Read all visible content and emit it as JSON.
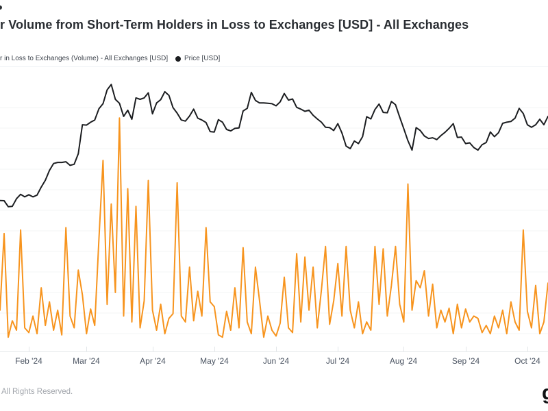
{
  "header": {
    "visible_title": "r Volume from Short-Term Holders in Loss to Exchanges [USD] - All Exchanges"
  },
  "legend": {
    "volume_label": "r in Loss to Exchanges (Volume) - All Exchanges [USD]",
    "price_label": "Price [USD]",
    "volume_color": "#f7941e",
    "price_color": "#1b1d20"
  },
  "footer": {
    "copyright": "All Rights Reserved.",
    "logo_partial_letter": "g"
  },
  "chart_data": {
    "type": "line",
    "title": "Transfer Volume from Short-Term Holders in Loss to Exchanges [USD] - All Exchanges",
    "grid": "horizontal-faint",
    "legend_position": "top-left",
    "x_dates": [
      "2024-01-19",
      "2024-01-21",
      "2024-01-23",
      "2024-01-25",
      "2024-01-27",
      "2024-01-29",
      "2024-01-31",
      "2024-02-02",
      "2024-02-04",
      "2024-02-06",
      "2024-02-08",
      "2024-02-10",
      "2024-02-12",
      "2024-02-14",
      "2024-02-16",
      "2024-02-18",
      "2024-02-20",
      "2024-02-22",
      "2024-02-24",
      "2024-02-26",
      "2024-02-28",
      "2024-03-01",
      "2024-03-03",
      "2024-03-05",
      "2024-03-07",
      "2024-03-09",
      "2024-03-11",
      "2024-03-13",
      "2024-03-15",
      "2024-03-17",
      "2024-03-19",
      "2024-03-21",
      "2024-03-23",
      "2024-03-25",
      "2024-03-27",
      "2024-03-29",
      "2024-03-31",
      "2024-04-02",
      "2024-04-04",
      "2024-04-06",
      "2024-04-08",
      "2024-04-10",
      "2024-04-12",
      "2024-04-14",
      "2024-04-16",
      "2024-04-18",
      "2024-04-20",
      "2024-04-22",
      "2024-04-24",
      "2024-04-26",
      "2024-04-28",
      "2024-04-30",
      "2024-05-02",
      "2024-05-04",
      "2024-05-06",
      "2024-05-08",
      "2024-05-10",
      "2024-05-12",
      "2024-05-14",
      "2024-05-16",
      "2024-05-18",
      "2024-05-20",
      "2024-05-22",
      "2024-05-24",
      "2024-05-26",
      "2024-05-28",
      "2024-05-30",
      "2024-06-01",
      "2024-06-03",
      "2024-06-05",
      "2024-06-07",
      "2024-06-09",
      "2024-06-11",
      "2024-06-13",
      "2024-06-15",
      "2024-06-17",
      "2024-06-19",
      "2024-06-21",
      "2024-06-23",
      "2024-06-25",
      "2024-06-27",
      "2024-06-29",
      "2024-07-01",
      "2024-07-03",
      "2024-07-05",
      "2024-07-07",
      "2024-07-09",
      "2024-07-11",
      "2024-07-13",
      "2024-07-15",
      "2024-07-17",
      "2024-07-19",
      "2024-07-21",
      "2024-07-23",
      "2024-07-25",
      "2024-07-27",
      "2024-07-29",
      "2024-07-31",
      "2024-08-02",
      "2024-08-04",
      "2024-08-06",
      "2024-08-08",
      "2024-08-10",
      "2024-08-12",
      "2024-08-14",
      "2024-08-16",
      "2024-08-18",
      "2024-08-20",
      "2024-08-22",
      "2024-08-24",
      "2024-08-26",
      "2024-08-28",
      "2024-08-30",
      "2024-09-01",
      "2024-09-03",
      "2024-09-05",
      "2024-09-07",
      "2024-09-09",
      "2024-09-11",
      "2024-09-13",
      "2024-09-15",
      "2024-09-17",
      "2024-09-19",
      "2024-09-21",
      "2024-09-23",
      "2024-09-25",
      "2024-09-27",
      "2024-09-29",
      "2024-10-01",
      "2024-10-03",
      "2024-10-05",
      "2024-10-07",
      "2024-10-09",
      "2024-10-11"
    ],
    "series": [
      {
        "name": "Price [USD]",
        "axis": "price",
        "color": "#1b1d20",
        "unit": "USD",
        "values": [
          41600,
          41550,
          39900,
          40000,
          42100,
          43300,
          42600,
          43200,
          42600,
          43100,
          45300,
          47200,
          49900,
          51800,
          52100,
          52100,
          52300,
          51300,
          51600,
          54500,
          62500,
          62400,
          63200,
          63800,
          66900,
          68300,
          72100,
          73600,
          69500,
          68400,
          64800,
          66500,
          64000,
          69900,
          69500,
          69900,
          71300,
          65500,
          68500,
          69400,
          71600,
          70600,
          67200,
          65700,
          63800,
          63500,
          64900,
          66800,
          64300,
          63800,
          63100,
          60600,
          60500,
          63900,
          63200,
          61200,
          60800,
          61500,
          61600,
          66300,
          67000,
          71400,
          69200,
          68500,
          68500,
          68400,
          68300,
          67700,
          68800,
          71100,
          69300,
          69600,
          67300,
          66800,
          66200,
          66500,
          65100,
          64100,
          63200,
          61800,
          61700,
          60900,
          62800,
          60200,
          56600,
          55900,
          58000,
          57300,
          59200,
          64700,
          64100,
          66700,
          68200,
          65900,
          65800,
          68900,
          68000,
          64600,
          61400,
          58100,
          55500,
          61700,
          60900,
          59400,
          58700,
          58900,
          58400,
          59500,
          60400,
          61500,
          62800,
          59000,
          59100,
          57300,
          57500,
          56200,
          55500,
          57000,
          57600,
          60500,
          59200,
          60300,
          62900,
          63200,
          63400,
          64300,
          67000,
          65600,
          62500,
          61800,
          62500,
          64000,
          62500,
          64800
        ]
      },
      {
        "name": "Transfer Volume from Short-Term Holders in Loss to Exchanges (Volume) - All Exchanges [USD]",
        "axis": "volume",
        "color": "#f7941e",
        "unit": "USD millions",
        "values": [
          350,
          1000,
          120,
          260,
          180,
          1030,
          200,
          160,
          300,
          150,
          540,
          220,
          420,
          180,
          350,
          140,
          1050,
          300,
          200,
          690,
          480,
          150,
          360,
          220,
          950,
          1620,
          400,
          1250,
          500,
          1980,
          300,
          1380,
          250,
          1230,
          200,
          430,
          1450,
          350,
          180,
          400,
          150,
          280,
          320,
          1430,
          300,
          250,
          715,
          260,
          510,
          300,
          1050,
          420,
          380,
          140,
          120,
          340,
          180,
          540,
          200,
          880,
          250,
          150,
          715,
          430,
          120,
          300,
          180,
          130,
          240,
          630,
          200,
          160,
          830,
          250,
          800,
          350,
          715,
          200,
          520,
          890,
          230,
          430,
          745,
          300,
          890,
          350,
          200,
          420,
          150,
          250,
          180,
          890,
          400,
          870,
          300,
          560,
          890,
          400,
          250,
          1420,
          350,
          600,
          540,
          685,
          300,
          570,
          200,
          350,
          250,
          366,
          150,
          400,
          200,
          360,
          250,
          300,
          280,
          160,
          220,
          150,
          300,
          200,
          350,
          150,
          420,
          250,
          180,
          1030,
          340,
          200,
          560,
          150,
          250,
          580
        ]
      }
    ],
    "price_ylim": [
      0,
      78000
    ],
    "volume_ylim_musd": [
      0,
      2400
    ],
    "x_ticks": [
      {
        "label": "Feb '24",
        "month": "2024-02"
      },
      {
        "label": "Mar '24",
        "month": "2024-03"
      },
      {
        "label": "Apr '24",
        "month": "2024-04"
      },
      {
        "label": "May '24",
        "month": "2024-05"
      },
      {
        "label": "Jun '24",
        "month": "2024-06"
      },
      {
        "label": "Jul '24",
        "month": "2024-07"
      },
      {
        "label": "Aug '24",
        "month": "2024-08"
      },
      {
        "label": "Sep '24",
        "month": "2024-09"
      },
      {
        "label": "Oct '24",
        "month": "2024-10"
      }
    ]
  },
  "colors": {
    "background": "#ffffff",
    "gridline": "#f3f4f6",
    "axis_line": "#e8eaec",
    "axis_label": "#4a5361",
    "title_text": "#292d32",
    "legend_text": "#3d434c",
    "footer_text": "#a2a6ac"
  }
}
